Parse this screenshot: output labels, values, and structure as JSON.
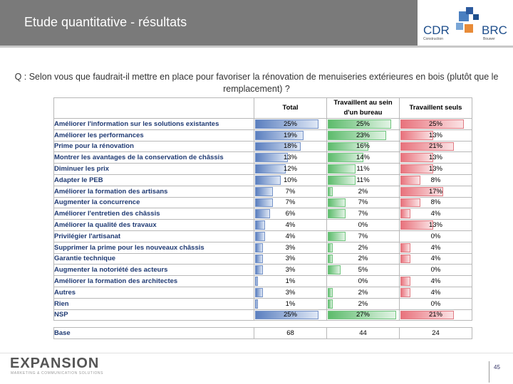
{
  "header": {
    "title": "Etude quantitative - résultats"
  },
  "logo": {
    "cdr": "CDR",
    "cdr_sub": "Construction",
    "brc": "BRC",
    "brc_sub": "Bouwer"
  },
  "question": "Q : Selon vous que faudrait-il mettre en place pour favoriser la rénovation de menuiseries extérieures en bois (plutôt que le remplacement) ?",
  "table": {
    "columns": [
      "Total",
      "Travaillent au sein d'un bureau",
      "Travaillent seuls"
    ],
    "rows": [
      {
        "label": "Améliorer l'information sur les solutions existantes",
        "total": "25%",
        "bureau": "25%",
        "seuls": "25%"
      },
      {
        "label": "Améliorer les performances",
        "total": "19%",
        "bureau": "23%",
        "seuls": "13%"
      },
      {
        "label": "Prime pour la rénovation",
        "total": "18%",
        "bureau": "16%",
        "seuls": "21%"
      },
      {
        "label": "Montrer les avantages de la conservation de châssis",
        "total": "13%",
        "bureau": "14%",
        "seuls": "13%"
      },
      {
        "label": "Diminuer les prix",
        "total": "12%",
        "bureau": "11%",
        "seuls": "13%"
      },
      {
        "label": "Adapter le PEB",
        "total": "10%",
        "bureau": "11%",
        "seuls": "8%"
      },
      {
        "label": "Améliorer la formation des artisans",
        "total": "7%",
        "bureau": "2%",
        "seuls": "17%"
      },
      {
        "label": "Augmenter la concurrence",
        "total": "7%",
        "bureau": "7%",
        "seuls": "8%"
      },
      {
        "label": "Améliorer l'entretien des châssis",
        "total": "6%",
        "bureau": "7%",
        "seuls": "4%"
      },
      {
        "label": "Améliorer la qualité des travaux",
        "total": "4%",
        "bureau": "0%",
        "seuls": "13%"
      },
      {
        "label": "Privilégier l'artisanat",
        "total": "4%",
        "bureau": "7%",
        "seuls": "0%"
      },
      {
        "label": "Supprimer la prime pour les nouveaux châssis",
        "total": "3%",
        "bureau": "2%",
        "seuls": "4%"
      },
      {
        "label": "Garantie technique",
        "total": "3%",
        "bureau": "2%",
        "seuls": "4%"
      },
      {
        "label": "Augmenter la notoriété des acteurs",
        "total": "3%",
        "bureau": "5%",
        "seuls": "0%"
      },
      {
        "label": "Améliorer la formation des architectes",
        "total": "1%",
        "bureau": "0%",
        "seuls": "4%"
      },
      {
        "label": "Autres",
        "total": "3%",
        "bureau": "2%",
        "seuls": "4%"
      },
      {
        "label": "Rien",
        "total": "1%",
        "bureau": "2%",
        "seuls": "0%"
      },
      {
        "label": "NSP",
        "total": "25%",
        "bureau": "27%",
        "seuls": "21%"
      }
    ],
    "base": {
      "label": "Base",
      "total": "68",
      "bureau": "44",
      "seuls": "24"
    }
  },
  "footer": {
    "brand": "EXPANSION",
    "tagline": "MARKETING & COMMUNICATION SOLUTIONS",
    "page": "45"
  }
}
